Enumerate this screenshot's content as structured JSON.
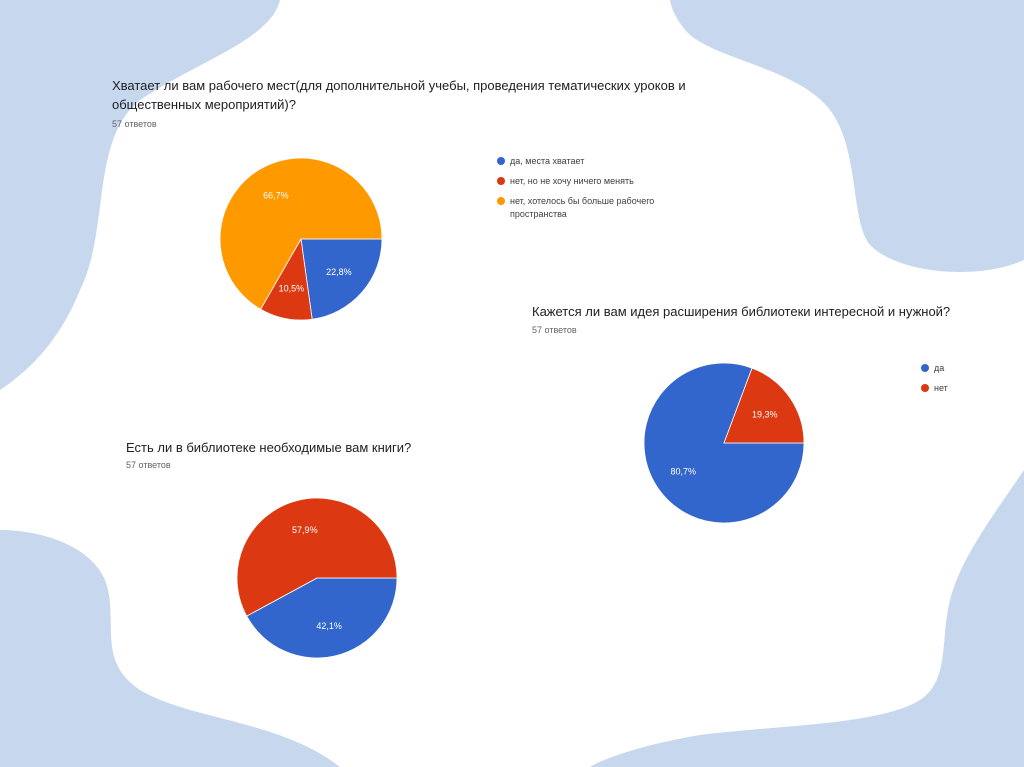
{
  "colors": {
    "background_blob": "#c7d8ee",
    "blue": "#3366cc",
    "red": "#dc3912",
    "orange": "#ff9900"
  },
  "chart_data": [
    {
      "type": "pie",
      "title": "Хватает ли вам рабочего мест(для дополнительной учебы, проведения тематических уроков и общественных мероприятий)?",
      "subtitle": "57 ответов",
      "legend_position": "right",
      "slices": [
        {
          "label": "да, места хватает",
          "value": 22.8,
          "display": "22,8%",
          "color": "#3366cc"
        },
        {
          "label": "нет, но не хочу ничего менять",
          "value": 10.5,
          "display": "10,5%",
          "color": "#dc3912"
        },
        {
          "label": "нет, хотелось бы больше рабочего пространства",
          "value": 66.7,
          "display": "66,7%",
          "color": "#ff9900"
        }
      ]
    },
    {
      "type": "pie",
      "title": "Кажется ли вам идея расширения библиотеки интересной и нужной?",
      "subtitle": "57 ответов",
      "legend_position": "right",
      "slices": [
        {
          "label": "да",
          "value": 80.7,
          "display": "80,7%",
          "color": "#3366cc"
        },
        {
          "label": "нет",
          "value": 19.3,
          "display": "19,3%",
          "color": "#dc3912"
        }
      ]
    },
    {
      "type": "pie",
      "title": "Есть ли в библиотеке необходимые вам книги?",
      "subtitle": "57 ответов",
      "legend_position": "none",
      "slices": [
        {
          "label": "",
          "value": 42.1,
          "display": "42,1%",
          "color": "#3366cc"
        },
        {
          "label": "",
          "value": 57.9,
          "display": "57,9%",
          "color": "#dc3912"
        }
      ]
    }
  ]
}
